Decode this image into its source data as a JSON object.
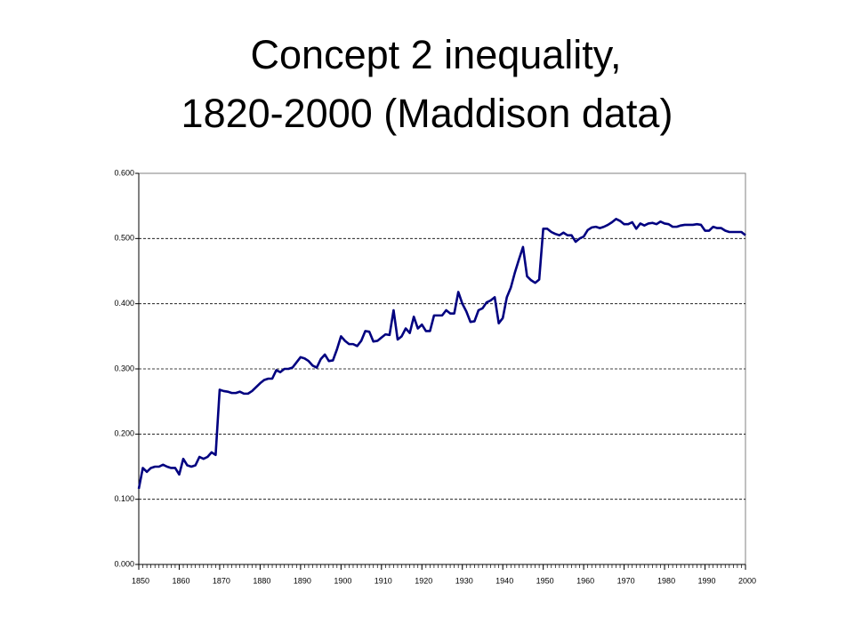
{
  "chart_data": {
    "type": "line",
    "title": [
      "Concept 2 inequality,",
      "1820-2000 (Maddison data)"
    ],
    "x": [
      1850,
      1851,
      1852,
      1853,
      1854,
      1855,
      1856,
      1857,
      1858,
      1859,
      1860,
      1861,
      1862,
      1863,
      1864,
      1865,
      1866,
      1867,
      1868,
      1869,
      1870,
      1871,
      1872,
      1873,
      1874,
      1875,
      1876,
      1877,
      1878,
      1879,
      1880,
      1881,
      1882,
      1883,
      1884,
      1885,
      1886,
      1887,
      1888,
      1889,
      1890,
      1891,
      1892,
      1893,
      1894,
      1895,
      1896,
      1897,
      1898,
      1899,
      1900,
      1901,
      1902,
      1903,
      1904,
      1905,
      1906,
      1907,
      1908,
      1909,
      1910,
      1911,
      1912,
      1913,
      1914,
      1915,
      1916,
      1917,
      1918,
      1919,
      1920,
      1921,
      1922,
      1923,
      1924,
      1925,
      1926,
      1927,
      1928,
      1929,
      1930,
      1931,
      1932,
      1933,
      1934,
      1935,
      1936,
      1937,
      1938,
      1939,
      1940,
      1941,
      1942,
      1943,
      1944,
      1945,
      1946,
      1947,
      1948,
      1949,
      1950,
      1951,
      1952,
      1953,
      1954,
      1955,
      1956,
      1957,
      1958,
      1959,
      1960,
      1961,
      1962,
      1963,
      1964,
      1965,
      1966,
      1967,
      1968,
      1969,
      1970,
      1971,
      1972,
      1973,
      1974,
      1975,
      1976,
      1977,
      1978,
      1979,
      1980,
      1981,
      1982,
      1983,
      1984,
      1985,
      1986,
      1987,
      1988,
      1989,
      1990,
      1991,
      1992,
      1993,
      1994,
      1995,
      1996,
      1997,
      1998,
      1999,
      2000
    ],
    "values": [
      0.116,
      0.148,
      0.142,
      0.148,
      0.15,
      0.15,
      0.153,
      0.15,
      0.148,
      0.148,
      0.138,
      0.162,
      0.152,
      0.15,
      0.152,
      0.165,
      0.162,
      0.165,
      0.172,
      0.168,
      0.268,
      0.266,
      0.265,
      0.263,
      0.263,
      0.265,
      0.262,
      0.262,
      0.266,
      0.272,
      0.278,
      0.283,
      0.285,
      0.285,
      0.298,
      0.295,
      0.3,
      0.3,
      0.302,
      0.31,
      0.318,
      0.316,
      0.312,
      0.305,
      0.302,
      0.315,
      0.322,
      0.312,
      0.313,
      0.33,
      0.35,
      0.343,
      0.338,
      0.338,
      0.335,
      0.343,
      0.358,
      0.357,
      0.342,
      0.343,
      0.348,
      0.353,
      0.352,
      0.39,
      0.345,
      0.35,
      0.362,
      0.355,
      0.38,
      0.362,
      0.368,
      0.358,
      0.358,
      0.382,
      0.382,
      0.382,
      0.39,
      0.385,
      0.385,
      0.418,
      0.4,
      0.388,
      0.372,
      0.373,
      0.39,
      0.393,
      0.402,
      0.405,
      0.41,
      0.37,
      0.378,
      0.41,
      0.425,
      0.448,
      0.468,
      0.487,
      0.442,
      0.436,
      0.432,
      0.437,
      0.515,
      0.515,
      0.51,
      0.507,
      0.505,
      0.509,
      0.505,
      0.505,
      0.495,
      0.5,
      0.503,
      0.513,
      0.517,
      0.518,
      0.516,
      0.518,
      0.521,
      0.525,
      0.53,
      0.527,
      0.522,
      0.522,
      0.525,
      0.515,
      0.523,
      0.52,
      0.523,
      0.524,
      0.522,
      0.526,
      0.523,
      0.522,
      0.518,
      0.518,
      0.52,
      0.521,
      0.521,
      0.521,
      0.522,
      0.521,
      0.512,
      0.512,
      0.518,
      0.516,
      0.516,
      0.512,
      0.51,
      0.51,
      0.51,
      0.51,
      0.505
    ],
    "color": "#000080",
    "xlim": [
      1850,
      2000
    ],
    "xticks": [
      1850,
      1860,
      1870,
      1880,
      1890,
      1900,
      1910,
      1920,
      1930,
      1940,
      1950,
      1960,
      1970,
      1980,
      1990,
      2000
    ],
    "ylim": [
      0,
      0.6
    ],
    "yticks": [
      {
        "value": 0,
        "label": "0.000"
      },
      {
        "value": 0.1,
        "label": "0.100"
      },
      {
        "value": 0.2,
        "label": "0.200"
      },
      {
        "value": 0.3,
        "label": "0.300"
      },
      {
        "value": 0.4,
        "label": "0.400"
      },
      {
        "value": 0.5,
        "label": "0.500"
      },
      {
        "value": 0.6,
        "label": "0.600"
      }
    ],
    "grid": true
  }
}
